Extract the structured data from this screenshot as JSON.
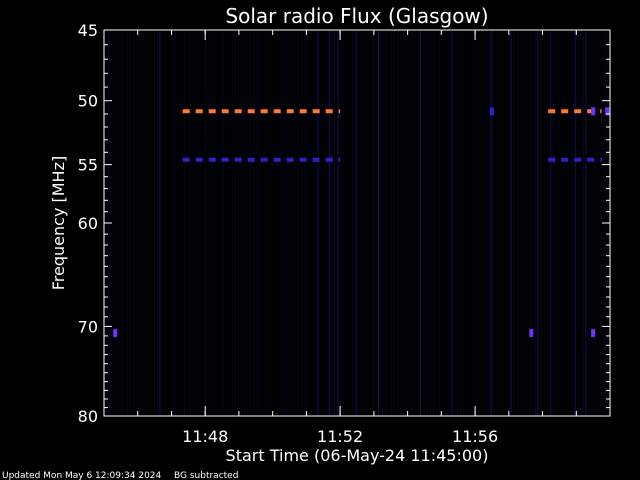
{
  "chart_data": {
    "type": "heatmap",
    "title": "Solar radio Flux (Glasgow)",
    "xlabel": "Start Time (06-May-24 11:45:00)",
    "ylabel": "Frequency [MHz]",
    "x_unit": "minutes",
    "xlim": [
      "11:45:00",
      "12:00:00"
    ],
    "ylim": [
      45,
      80
    ],
    "y_scale": "log",
    "y_ticks": [
      45,
      50,
      55,
      60,
      70,
      80
    ],
    "y_tick_labels": [
      "45",
      "50",
      "55",
      "60",
      "70",
      "80"
    ],
    "x_ticks": [
      "11:48",
      "11:52",
      "11:56"
    ],
    "x_tick_labels": [
      "11:48",
      "11:52",
      "11:56"
    ],
    "background_color": "#000000",
    "frame_color": "#ffffff",
    "bands": [
      {
        "freq_mhz": 50.8,
        "start": "11:47:20",
        "end": "11:52:00",
        "color": "#ff7a30",
        "dashed": true
      },
      {
        "freq_mhz": 54.6,
        "start": "11:47:20",
        "end": "11:52:00",
        "color": "#3020c8",
        "dashed": true
      },
      {
        "freq_mhz": 50.8,
        "start": "11:58:10",
        "end": "11:59:45",
        "color": "#ff7a30",
        "dashed": true
      },
      {
        "freq_mhz": 54.6,
        "start": "11:58:10",
        "end": "11:59:45",
        "color": "#3020c8",
        "dashed": true
      }
    ],
    "spots": [
      {
        "time": "11:45:20",
        "freq_mhz": 70.7,
        "color": "#7030ff"
      },
      {
        "time": "11:57:40",
        "freq_mhz": 70.7,
        "color": "#7030ff"
      },
      {
        "time": "11:59:30",
        "freq_mhz": 70.7,
        "color": "#7030ff"
      },
      {
        "time": "11:56:30",
        "freq_mhz": 50.8,
        "color": "#3020c8"
      },
      {
        "time": "11:59:30",
        "freq_mhz": 50.8,
        "color": "#7030ff"
      },
      {
        "time": "11:59:55",
        "freq_mhz": 50.8,
        "color": "#7030ff"
      }
    ]
  },
  "footer": {
    "updated": "Updated Mon May  6 12:09:34 2024",
    "note": "BG subtracted"
  }
}
